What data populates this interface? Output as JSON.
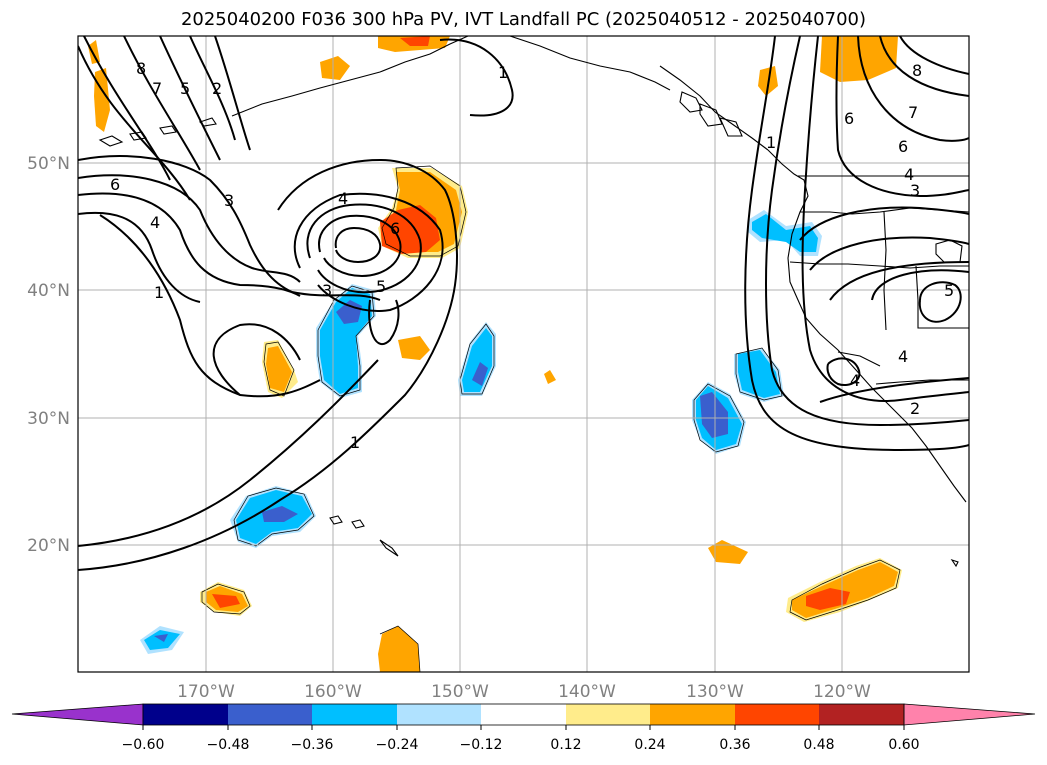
{
  "title": "2025040200 F036 300 hPa PV, IVT Landfall PC (2025040512 - 2025040700)",
  "map": {
    "lon_ticks": [
      "170°W",
      "160°W",
      "150°W",
      "140°W",
      "130°W",
      "120°W"
    ],
    "lat_ticks": [
      "50°N",
      "40°N",
      "30°N",
      "20°N"
    ],
    "extent": {
      "lon_min": -180,
      "lon_max": -110,
      "lat_min": 10,
      "lat_max": 60
    },
    "grid": true
  },
  "colorbar": {
    "tick_labels": [
      "−0.60",
      "−0.48",
      "−0.36",
      "−0.24",
      "−0.12",
      "0.12",
      "0.24",
      "0.36",
      "0.48",
      "0.60"
    ],
    "colors": [
      "#9932cc",
      "#00008b",
      "#3a5fcd",
      "#00bfff",
      "#b0e2ff",
      "#ffffff",
      "#ffec8b",
      "#ffa500",
      "#ff4500",
      "#b22222",
      "#ff82ab"
    ],
    "extend": "both"
  },
  "contour_labels": [
    "8",
    "7",
    "5",
    "2",
    "1",
    "6",
    "4",
    "3",
    "1",
    "4",
    "6",
    "3",
    "5",
    "1",
    "1",
    "6",
    "8",
    "7",
    "6",
    "4",
    "3",
    "5",
    "4",
    "4",
    "2"
  ]
}
